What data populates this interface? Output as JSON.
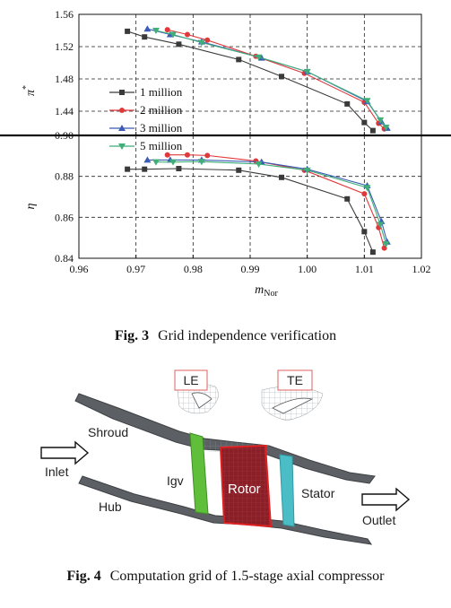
{
  "fig3": {
    "caption_label": "Fig. 3",
    "caption_text": "Grid independence verification",
    "legend": [
      "1 million",
      "2 million",
      "3 million",
      "5 million"
    ],
    "x_label_main": "m",
    "x_label_sub": "Nor",
    "y_top_label": "π",
    "y_top_sup": "*",
    "y_bot_label": "η"
  },
  "fig4": {
    "caption_label": "Fig. 4",
    "caption_text": "Computation grid of 1.5-stage axial compressor",
    "labels": {
      "le": "LE",
      "te": "TE",
      "shroud": "Shroud",
      "inlet": "Inlet",
      "igv": "Igv",
      "rotor": "Rotor",
      "stator": "Stator",
      "hub": "Hub",
      "outlet": "Outlet"
    }
  },
  "chart_data": [
    {
      "type": "line",
      "panel": "top",
      "xlabel": "m_Nor",
      "ylabel": "π*",
      "xlim": [
        0.96,
        1.02
      ],
      "ylim": [
        1.41,
        1.56
      ],
      "xticks": [
        "0.96",
        "0.97",
        "0.98",
        "0.99",
        "1.00",
        "1.01",
        "1.02"
      ],
      "yticks": [
        "1.44",
        "1.48",
        "1.52",
        "1.56"
      ],
      "grid": "dashed",
      "legend_position": "bottom-left",
      "series": [
        {
          "name": "1 million",
          "color": "#3a3a3a",
          "marker": "square",
          "x": [
            0.9685,
            0.9715,
            0.9775,
            0.988,
            0.9955,
            1.007,
            1.01,
            1.0115
          ],
          "y": [
            1.539,
            1.532,
            1.523,
            1.504,
            1.483,
            1.449,
            1.426,
            1.416
          ]
        },
        {
          "name": "2 million",
          "color": "#e0393c",
          "marker": "circle",
          "x": [
            0.9755,
            0.979,
            0.9825,
            0.991,
            0.9995,
            1.01,
            1.0125,
            1.0135
          ],
          "y": [
            1.541,
            1.535,
            1.528,
            1.508,
            1.487,
            1.451,
            1.425,
            1.418
          ]
        },
        {
          "name": "3 million",
          "color": "#3b5bb5",
          "marker": "triangle-up",
          "x": [
            0.972,
            0.976,
            0.9815,
            0.992,
            1.0,
            1.0105,
            1.013,
            1.014
          ],
          "y": [
            1.542,
            1.535,
            1.526,
            1.506,
            1.489,
            1.452,
            1.427,
            1.419
          ]
        },
        {
          "name": "5 million",
          "color": "#3fae78",
          "marker": "triangle-down",
          "x": [
            0.9735,
            0.9765,
            0.9815,
            0.9915,
            1.0,
            1.0105,
            1.0128,
            1.0138
          ],
          "y": [
            1.54,
            1.535,
            1.525,
            1.507,
            1.489,
            1.453,
            1.429,
            1.42
          ]
        }
      ]
    },
    {
      "type": "line",
      "panel": "bottom",
      "xlabel": "m_Nor",
      "ylabel": "η",
      "xlim": [
        0.96,
        1.02
      ],
      "ylim": [
        0.84,
        0.9
      ],
      "xticks": [
        "0.96",
        "0.97",
        "0.98",
        "0.99",
        "1.00",
        "1.01",
        "1.02"
      ],
      "yticks": [
        "0.84",
        "0.86",
        "0.88",
        "0.90"
      ],
      "grid": "dashed",
      "series": [
        {
          "name": "1 million",
          "color": "#3a3a3a",
          "marker": "square",
          "x": [
            0.9685,
            0.9715,
            0.9775,
            0.988,
            0.9955,
            1.007,
            1.01,
            1.0115
          ],
          "y": [
            0.8835,
            0.8835,
            0.8838,
            0.883,
            0.8795,
            0.869,
            0.853,
            0.843
          ]
        },
        {
          "name": "2 million",
          "color": "#e0393c",
          "marker": "circle",
          "x": [
            0.9755,
            0.979,
            0.9825,
            0.991,
            0.9995,
            1.01,
            1.0125,
            1.0135
          ],
          "y": [
            0.8905,
            0.8905,
            0.8902,
            0.8875,
            0.883,
            0.8715,
            0.855,
            0.845
          ]
        },
        {
          "name": "3 million",
          "color": "#3b5bb5",
          "marker": "triangle-up",
          "x": [
            0.972,
            0.976,
            0.9815,
            0.992,
            1.0,
            1.0105,
            1.013,
            1.014
          ],
          "y": [
            0.888,
            0.888,
            0.888,
            0.887,
            0.8835,
            0.8755,
            0.858,
            0.848
          ]
        },
        {
          "name": "5 million",
          "color": "#3fae78",
          "marker": "triangle-down",
          "x": [
            0.9735,
            0.9765,
            0.9815,
            0.9915,
            1.0,
            1.0105,
            1.0128,
            1.0138
          ],
          "y": [
            0.887,
            0.887,
            0.8872,
            0.886,
            0.883,
            0.8745,
            0.8565,
            0.847
          ]
        }
      ]
    }
  ]
}
